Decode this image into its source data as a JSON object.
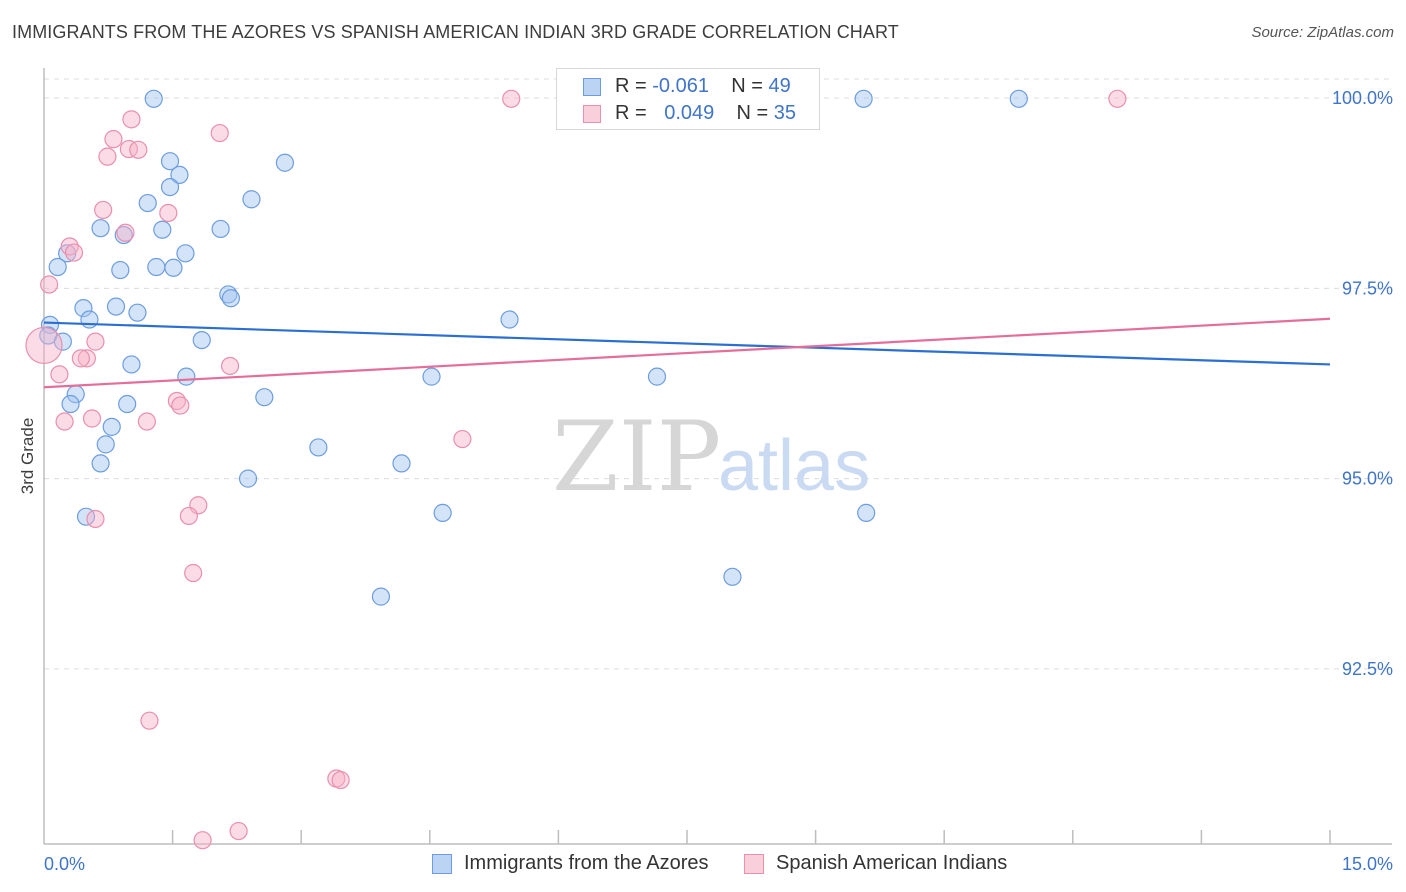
{
  "chart_data": {
    "type": "scatter",
    "title": "IMMIGRANTS FROM THE AZORES VS SPANISH AMERICAN INDIAN 3RD GRADE CORRELATION CHART",
    "source": "Source: ZipAtlas.com",
    "xlabel": "",
    "ylabel": "3rd Grade",
    "xlim": [
      0,
      15
    ],
    "ylim": [
      90.2,
      100.25
    ],
    "x_tick_labels": [
      {
        "value": 0,
        "label": "0.0%"
      },
      {
        "value": 15,
        "label": "15.0%"
      }
    ],
    "x_minor_ticks": [
      1.5,
      3.0,
      4.5,
      6.0,
      7.5,
      9.0,
      10.5,
      12.0,
      13.5
    ],
    "y_ticks": [
      {
        "value": 100.0,
        "label": "100.0%"
      },
      {
        "value": 97.5,
        "label": "97.5%"
      },
      {
        "value": 95.0,
        "label": "95.0%"
      },
      {
        "value": 92.5,
        "label": "92.5%"
      }
    ],
    "grid": true,
    "watermark": {
      "zip": "ZIP",
      "atlas": "atlas"
    },
    "legend_stats": [
      {
        "r_label": "R =",
        "r_value": "-0.061",
        "n_label": "N =",
        "n_value": "49"
      },
      {
        "r_label": "R =",
        "r_value": "0.049",
        "n_label": "N =",
        "n_value": "35"
      }
    ],
    "series": [
      {
        "name": "Immigrants from the Azores",
        "color": "#6d9de0",
        "fill": "#a0c4f0",
        "trend_color": "#2a6fd1",
        "trend": {
          "x0": 0.0,
          "y0": 97.05,
          "x1": 15.0,
          "y1": 96.5
        },
        "points": [
          [
            1.28,
            99.99
          ],
          [
            9.56,
            99.99
          ],
          [
            11.37,
            99.99
          ],
          [
            1.47,
            99.17
          ],
          [
            2.81,
            99.15
          ],
          [
            1.58,
            98.99
          ],
          [
            1.47,
            98.83
          ],
          [
            1.21,
            98.62
          ],
          [
            2.42,
            98.67
          ],
          [
            0.66,
            98.29
          ],
          [
            1.38,
            98.27
          ],
          [
            0.93,
            98.2
          ],
          [
            2.06,
            98.28
          ],
          [
            1.65,
            97.96
          ],
          [
            0.27,
            97.96
          ],
          [
            0.16,
            97.78
          ],
          [
            1.31,
            97.78
          ],
          [
            1.51,
            97.77
          ],
          [
            0.89,
            97.74
          ],
          [
            2.15,
            97.42
          ],
          [
            2.18,
            97.37
          ],
          [
            0.46,
            97.24
          ],
          [
            0.84,
            97.26
          ],
          [
            1.09,
            97.18
          ],
          [
            0.53,
            97.09
          ],
          [
            5.43,
            97.09
          ],
          [
            0.07,
            97.02
          ],
          [
            0.05,
            96.88
          ],
          [
            0.22,
            96.8
          ],
          [
            1.84,
            96.82
          ],
          [
            1.02,
            96.5
          ],
          [
            1.66,
            96.34
          ],
          [
            4.52,
            96.34
          ],
          [
            7.15,
            96.34
          ],
          [
            0.37,
            96.11
          ],
          [
            2.57,
            96.07
          ],
          [
            0.31,
            95.98
          ],
          [
            0.97,
            95.98
          ],
          [
            0.79,
            95.68
          ],
          [
            0.72,
            95.45
          ],
          [
            3.2,
            95.41
          ],
          [
            0.66,
            95.2
          ],
          [
            4.17,
            95.2
          ],
          [
            2.38,
            95.0
          ],
          [
            0.49,
            94.5
          ],
          [
            4.65,
            94.55
          ],
          [
            9.59,
            94.55
          ],
          [
            8.03,
            93.71
          ],
          [
            3.93,
            93.45
          ]
        ]
      },
      {
        "name": "Spanish American Indians",
        "color": "#ea8fae",
        "fill": "#f6b2c8",
        "trend_color": "#e46e99",
        "trend": {
          "x0": 0.0,
          "y0": 96.2,
          "x1": 15.0,
          "y1": 97.1
        },
        "points": [
          [
            5.45,
            99.99
          ],
          [
            12.52,
            99.99
          ],
          [
            1.02,
            99.72
          ],
          [
            2.05,
            99.54
          ],
          [
            0.81,
            99.46
          ],
          [
            0.99,
            99.33
          ],
          [
            1.1,
            99.32
          ],
          [
            0.74,
            99.23
          ],
          [
            0.69,
            98.53
          ],
          [
            1.45,
            98.49
          ],
          [
            0.95,
            98.23
          ],
          [
            0.3,
            98.05
          ],
          [
            0.35,
            97.97
          ],
          [
            0.06,
            97.55
          ],
          [
            0.6,
            96.8
          ],
          [
            0.5,
            96.58
          ],
          [
            0.43,
            96.58
          ],
          [
            2.17,
            96.48
          ],
          [
            0.18,
            96.37
          ],
          [
            1.55,
            96.02
          ],
          [
            1.59,
            95.96
          ],
          [
            0.56,
            95.79
          ],
          [
            0.24,
            95.75
          ],
          [
            1.2,
            95.75
          ],
          [
            4.88,
            95.52
          ],
          [
            1.8,
            94.65
          ],
          [
            1.69,
            94.51
          ],
          [
            0.6,
            94.47
          ],
          [
            1.74,
            93.76
          ],
          [
            1.23,
            91.82
          ],
          [
            3.41,
            91.06
          ],
          [
            3.46,
            91.04
          ],
          [
            2.27,
            90.37
          ],
          [
            1.85,
            90.25
          ],
          [
            0.0,
            96.75
          ]
        ]
      }
    ]
  }
}
